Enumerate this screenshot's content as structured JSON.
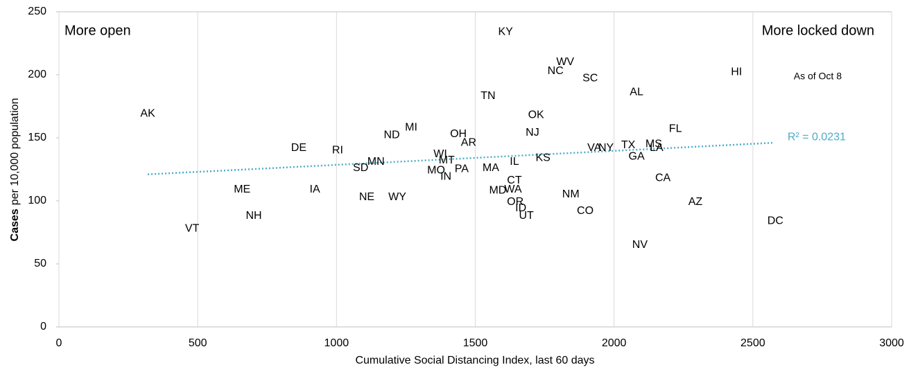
{
  "chart_data": {
    "type": "scatter",
    "ylabel": [
      "Cases",
      "per 10,000 population"
    ],
    "xlabel": "Cumulative Social Distancing Index, last 60 days",
    "annotations": [
      "More open",
      "More locked down",
      "As of Oct 8"
    ],
    "xlim": [
      0,
      3000
    ],
    "xticks": [
      0,
      500,
      1000,
      1500,
      2000,
      2500,
      3000
    ],
    "ylim": [
      0,
      250
    ],
    "yticks": [
      0,
      50,
      100,
      150,
      200,
      250
    ],
    "grid": true,
    "series": [
      {
        "color": "#000000",
        "labels": [
          "AK",
          "VT",
          "ME",
          "NH",
          "IA",
          "DE",
          "RI",
          "SD",
          "MN",
          "NE",
          "WY",
          "ND",
          "MI",
          "OH",
          "AR",
          "WI",
          "MT",
          "MO",
          "IN",
          "PA",
          "MA",
          "TN",
          "KY",
          "NC",
          "WV",
          "SC",
          "OK",
          "NJ",
          "IL",
          "KS",
          "CT",
          "MD",
          "WA",
          "OR",
          "ID",
          "UT",
          "NM",
          "CO",
          "VA",
          "NY",
          "TX",
          "MS",
          "LA",
          "GA",
          "AL",
          "FL",
          "CA",
          "AZ",
          "NV",
          "HI",
          "DC"
        ],
        "x": [
          320,
          480,
          660,
          702,
          922,
          864,
          1004,
          1087,
          1142,
          1109,
          1219,
          1199,
          1269,
          1439,
          1476,
          1374,
          1397,
          1359,
          1394,
          1451,
          1556,
          1546,
          1609,
          1789,
          1824,
          1914,
          1719,
          1706,
          1641,
          1744,
          1641,
          1581,
          1636,
          1644,
          1664,
          1684,
          1844,
          1896,
          1929,
          1971,
          2051,
          2143,
          2153,
          2081,
          2081,
          2221,
          2176,
          2293,
          2093,
          2441,
          2581
        ],
        "y": [
          169,
          78,
          109,
          88,
          109,
          142,
          140,
          126,
          131,
          103,
          103,
          152,
          158,
          153,
          146,
          137,
          132,
          124,
          119,
          125,
          126,
          183,
          234,
          203,
          210,
          197,
          168,
          154,
          131,
          134,
          116,
          108,
          109,
          99,
          94,
          88,
          105,
          92,
          142,
          142,
          144,
          145,
          142,
          135,
          186,
          157,
          118,
          99,
          65,
          202,
          84
        ]
      }
    ],
    "trendline": {
      "color": "#4bacc6",
      "label": "R² = 0.0231",
      "x": [
        320,
        2570
      ],
      "y": [
        121,
        146
      ]
    }
  }
}
